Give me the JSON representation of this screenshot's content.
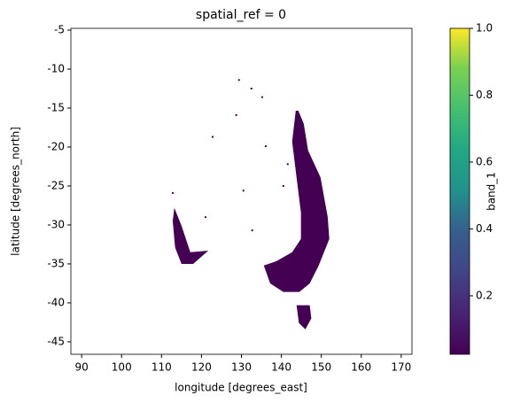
{
  "chart_data": {
    "type": "raster",
    "title": "spatial_ref = 0",
    "x_label": "longitude [degrees_east]",
    "y_label": "latitude [degrees_north]",
    "xlim": [
      87.3,
      172.7
    ],
    "ylim": [
      -46.6,
      -4.77
    ],
    "xticks": [
      90,
      100,
      110,
      120,
      130,
      140,
      150,
      160,
      170
    ],
    "yticks": [
      -5,
      -10,
      -15,
      -20,
      -25,
      -30,
      -35,
      -40,
      -45
    ],
    "regions": [
      {
        "lon": [
          144.25,
          145.6,
          146.7,
          149.8,
          151.6,
          152.0,
          149.35,
          147.1,
          144.5,
          140.5,
          137.2,
          135.6,
          138.7,
          142.7,
          144.9,
          144.9,
          143.8,
          142.7,
          143.6
        ],
        "lat": [
          -15.34,
          -17.0,
          -20.45,
          -23.9,
          -28.97,
          -31.8,
          -35.2,
          -37.5,
          -38.6,
          -38.6,
          -37.5,
          -35.2,
          -34.66,
          -33.5,
          -31.8,
          -28.4,
          -23.9,
          -19.3,
          -15.34
        ],
        "value": 0.025
      },
      {
        "lon": [
          143.8,
          147.1,
          147.5,
          146.0,
          144.4
        ],
        "lat": [
          -40.3,
          -40.3,
          -42.0,
          -43.4,
          -42.6
        ],
        "value": 0.025
      },
      {
        "lon": [
          113.2,
          115.0,
          117.2,
          121.7,
          117.9,
          115.0,
          113.4,
          112.8
        ],
        "lat": [
          -27.8,
          -30.1,
          -33.5,
          -33.3,
          -35.0,
          -35.0,
          -32.9,
          -29.5
        ],
        "value": 0.025
      }
    ],
    "points": {
      "lon": [
        129.4,
        132.5,
        135.2,
        128.7,
        122.8,
        136.1,
        141.6,
        130.5,
        121.0,
        132.7,
        112.8,
        140.5
      ],
      "lat": [
        -11.4,
        -12.5,
        -13.6,
        -15.9,
        -18.7,
        -19.9,
        -22.2,
        -25.6,
        -29.0,
        -30.7,
        -25.9,
        -25.0
      ],
      "value": 0.025
    },
    "colorbar": {
      "label": "band_1",
      "lim": [
        0.025,
        1
      ],
      "ticks": [
        0.2,
        0.4,
        0.6,
        0.8,
        {
          "value": 1,
          "label": "1.0"
        }
      ]
    }
  }
}
